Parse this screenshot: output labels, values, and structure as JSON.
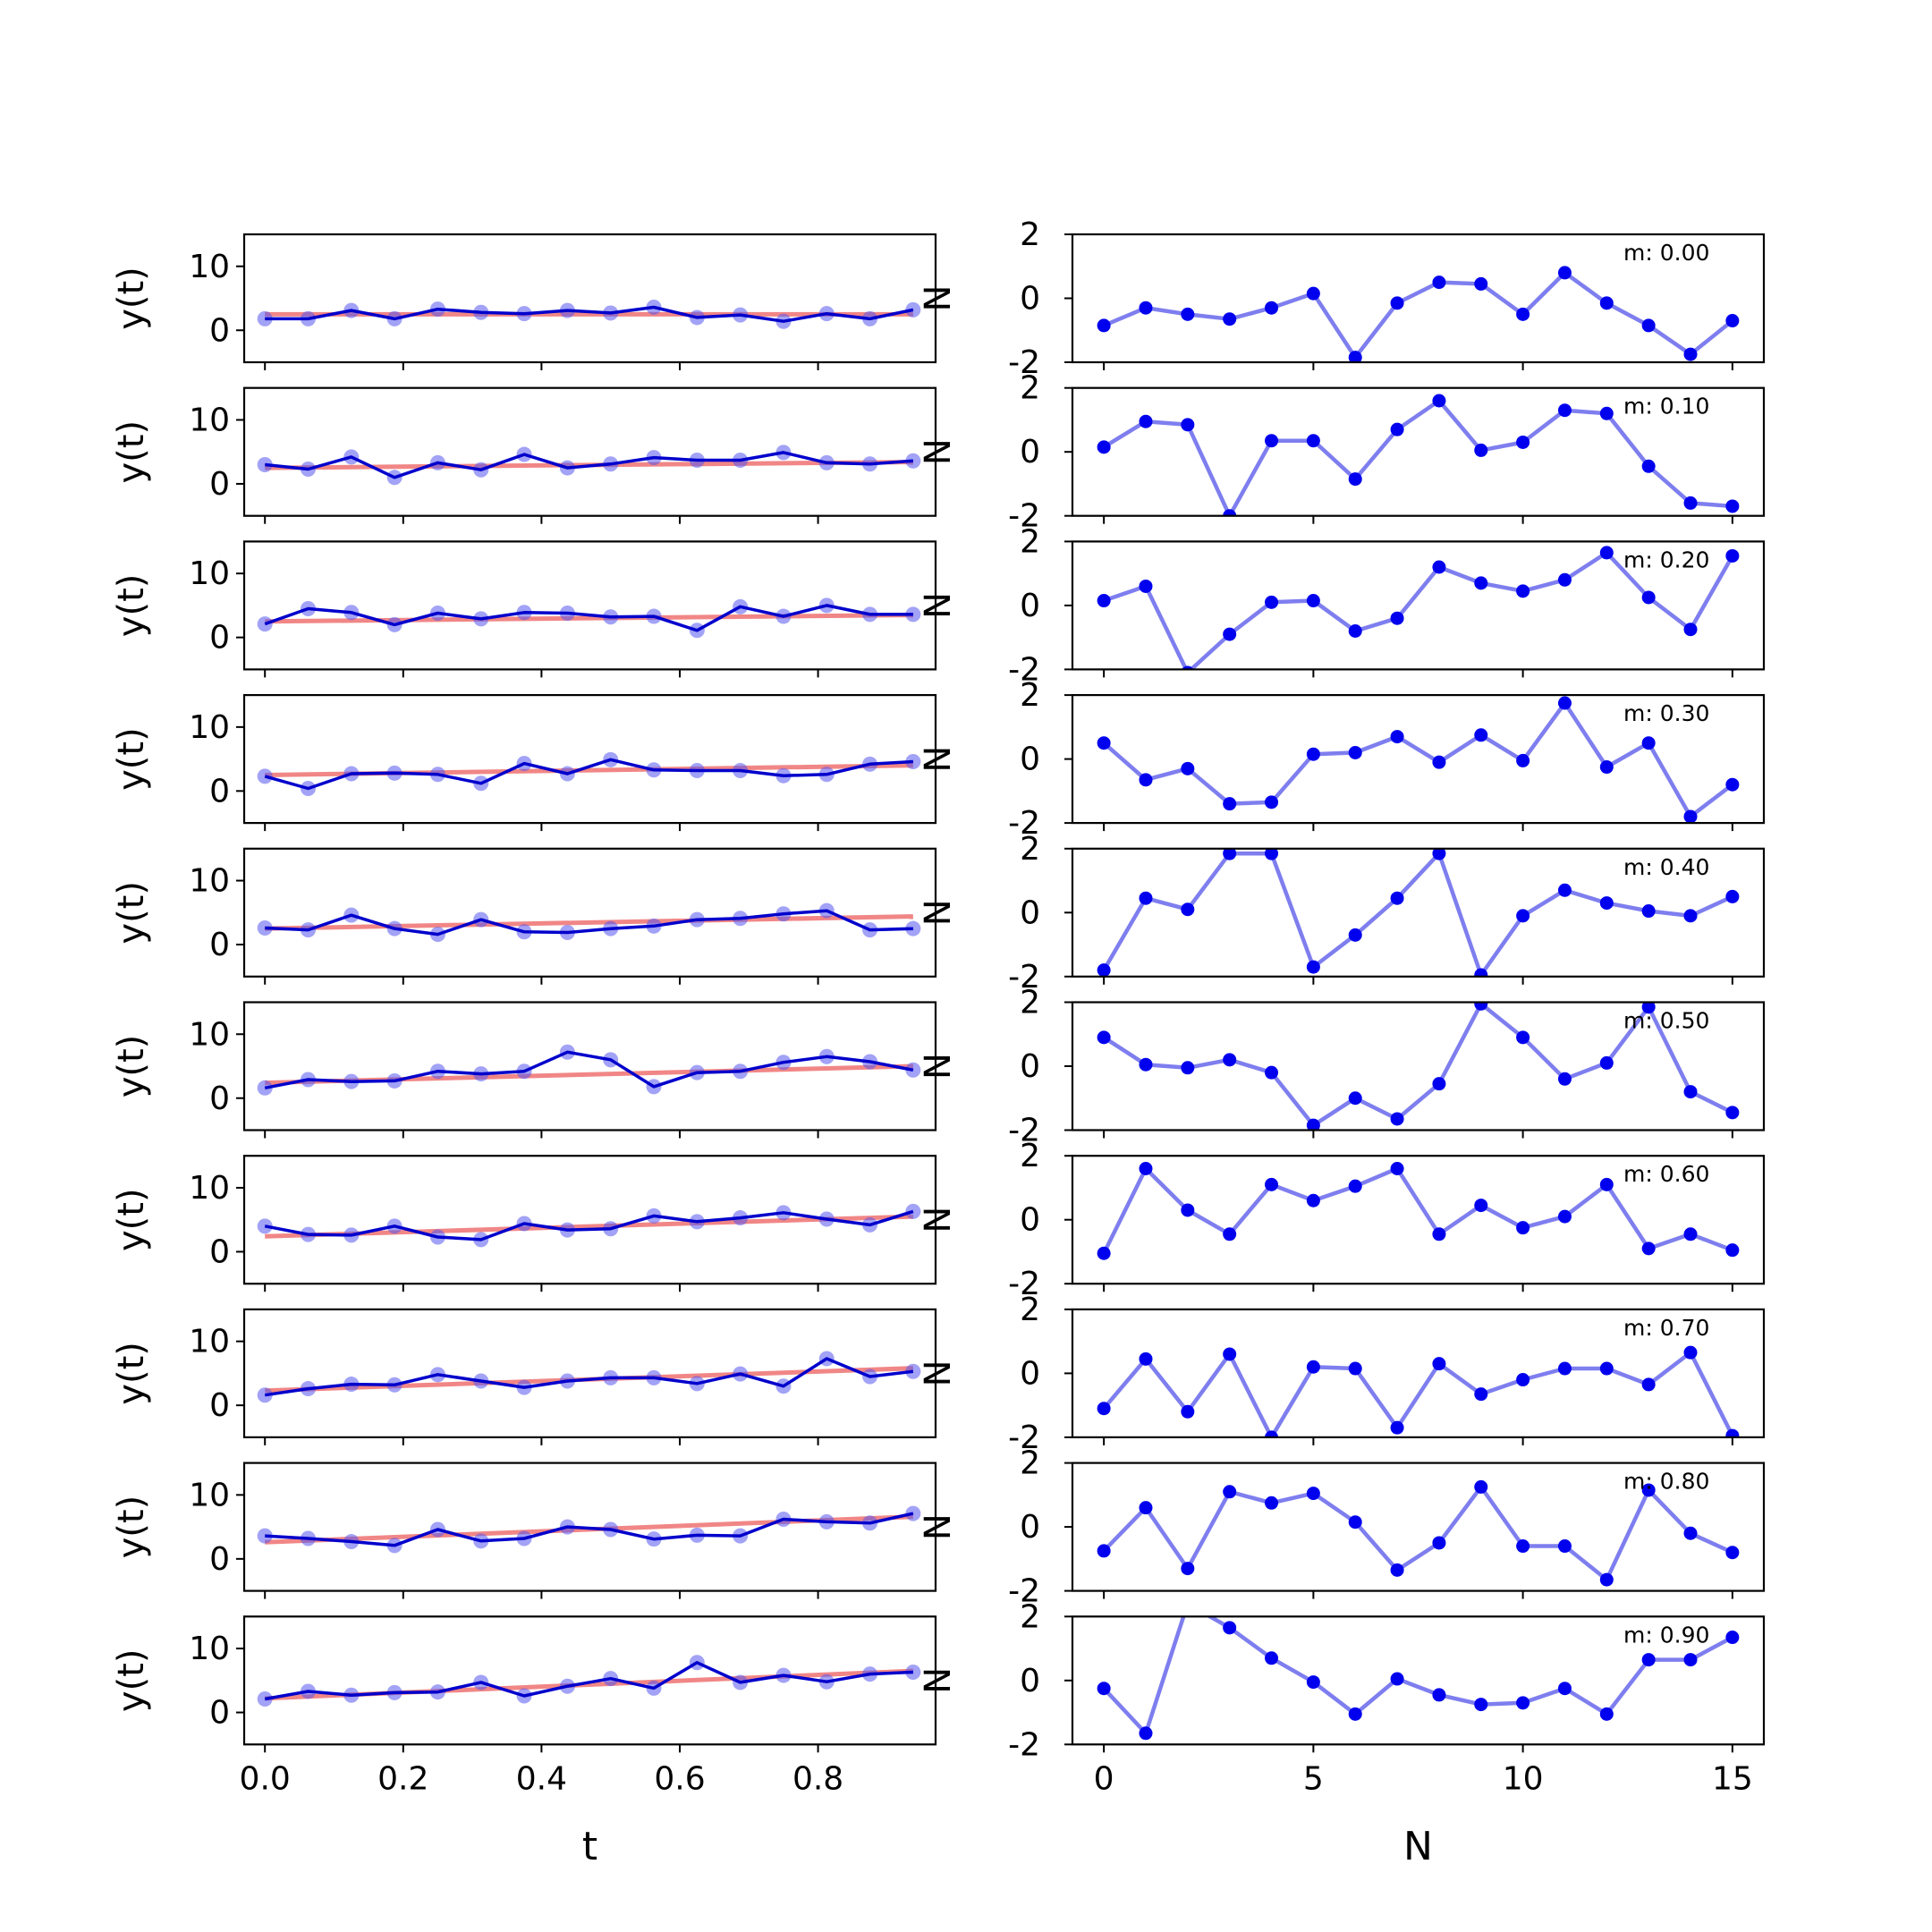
{
  "chart_data": {
    "type": "line",
    "layout": "10 rows x 2 columns of subplots",
    "left_column": {
      "ylabel": "y(t)",
      "xlabel": "t",
      "ylim": [
        -5,
        15
      ],
      "yticks": [
        0,
        10
      ],
      "xlim": [
        -0.03,
        0.97
      ],
      "xticks": [
        0.0,
        0.2,
        0.4,
        0.6,
        0.8
      ],
      "xtick_labels": [
        "0.0",
        "0.2",
        "0.4",
        "0.6",
        "0.8"
      ],
      "t": [
        0.0,
        0.0625,
        0.125,
        0.1875,
        0.25,
        0.3125,
        0.375,
        0.4375,
        0.5,
        0.5625,
        0.625,
        0.6875,
        0.75,
        0.8125,
        0.875,
        0.9375
      ],
      "series_colors": {
        "noisy": "#0000cc",
        "markers": "#5555ee",
        "trend": "#f08080"
      }
    },
    "right_column": {
      "ylabel": "N",
      "xlabel": "N",
      "ylim": [
        -2,
        2
      ],
      "yticks": [
        -2,
        0,
        2
      ],
      "xlim": [
        -0.75,
        15.75
      ],
      "xticks": [
        0,
        5,
        10,
        15
      ],
      "xtick_labels": [
        "0",
        "5",
        "10",
        "15"
      ],
      "line_color": "#7777ee",
      "marker_color": "#0000ee"
    },
    "rows": [
      {
        "m_label": "m: 0.00",
        "trend": [
          2.5,
          2.5
        ],
        "y": [
          1.8,
          1.8,
          3.1,
          1.8,
          3.3,
          2.8,
          2.6,
          3.1,
          2.7,
          3.6,
          2.0,
          2.4,
          1.4,
          2.6,
          1.8,
          3.2
        ],
        "noise": [
          -0.85,
          -0.3,
          -0.5,
          -0.65,
          -0.3,
          0.15,
          -1.85,
          -0.15,
          0.5,
          0.45,
          -0.5,
          0.8,
          -0.15,
          -0.85,
          -1.75,
          -0.7
        ]
      },
      {
        "m_label": "m: 0.10",
        "trend": [
          2.5,
          3.4
        ],
        "y": [
          3.0,
          2.3,
          4.2,
          1.0,
          3.3,
          2.2,
          4.6,
          2.5,
          3.1,
          4.1,
          3.7,
          3.7,
          4.9,
          3.3,
          3.1,
          3.6
        ],
        "noise": [
          0.15,
          0.95,
          0.85,
          -2.0,
          0.35,
          0.35,
          -0.85,
          0.7,
          1.6,
          0.05,
          0.3,
          1.3,
          1.2,
          -0.45,
          -1.6,
          -1.7
        ]
      },
      {
        "m_label": "m: 0.20",
        "trend": [
          2.5,
          3.5
        ],
        "y": [
          2.1,
          4.5,
          3.9,
          2.0,
          3.8,
          2.9,
          3.9,
          3.8,
          3.2,
          3.3,
          1.1,
          4.8,
          3.3,
          5.0,
          3.6,
          3.6
        ],
        "noise": [
          0.15,
          0.6,
          -2.1,
          -0.9,
          0.1,
          0.15,
          -0.8,
          -0.4,
          1.2,
          0.7,
          0.45,
          0.8,
          1.65,
          0.25,
          -0.75,
          1.55
        ]
      },
      {
        "m_label": "m: 0.30",
        "trend": [
          2.5,
          4.0
        ],
        "y": [
          2.3,
          0.4,
          2.7,
          2.8,
          2.6,
          1.2,
          4.3,
          2.7,
          4.9,
          3.3,
          3.2,
          3.2,
          2.4,
          2.6,
          4.2,
          4.6
        ],
        "noise": [
          0.5,
          -0.65,
          -0.3,
          -1.4,
          -1.35,
          0.15,
          0.2,
          0.7,
          -0.1,
          0.75,
          -0.05,
          1.75,
          -0.25,
          0.5,
          -1.8,
          -0.8
        ]
      },
      {
        "m_label": "m: 0.40",
        "trend": [
          2.5,
          4.4
        ],
        "y": [
          2.6,
          2.3,
          4.6,
          2.5,
          1.6,
          3.9,
          2.0,
          1.9,
          2.5,
          2.9,
          3.9,
          4.1,
          4.8,
          5.3,
          2.3,
          2.5
        ],
        "noise": [
          -1.8,
          0.45,
          0.1,
          1.85,
          1.85,
          -1.7,
          -0.7,
          0.45,
          1.85,
          -1.95,
          -0.1,
          0.7,
          0.3,
          0.05,
          -0.1,
          0.5
        ]
      },
      {
        "m_label": "m: 0.50",
        "trend": [
          2.4,
          5.0
        ],
        "y": [
          1.6,
          2.9,
          2.6,
          2.7,
          4.2,
          3.8,
          4.2,
          7.2,
          6.0,
          1.8,
          4.0,
          4.2,
          5.6,
          6.5,
          5.7,
          4.4
        ],
        "noise": [
          0.9,
          0.05,
          -0.05,
          0.2,
          -0.2,
          -1.85,
          -1.0,
          -1.65,
          -0.55,
          1.95,
          0.9,
          -0.4,
          0.1,
          1.85,
          -0.8,
          -1.45
        ]
      },
      {
        "m_label": "m: 0.60",
        "trend": [
          2.4,
          5.5
        ],
        "y": [
          4.0,
          2.7,
          2.6,
          4.0,
          2.3,
          1.9,
          4.4,
          3.4,
          3.6,
          5.6,
          4.7,
          5.3,
          6.1,
          5.1,
          4.2,
          6.3
        ],
        "noise": [
          -1.05,
          1.6,
          0.3,
          -0.45,
          1.1,
          0.6,
          1.05,
          1.6,
          -0.45,
          0.45,
          -0.25,
          0.1,
          1.1,
          -0.9,
          -0.45,
          -0.95
        ]
      },
      {
        "m_label": "m: 0.70",
        "trend": [
          2.3,
          5.8
        ],
        "y": [
          1.6,
          2.6,
          3.3,
          3.2,
          4.8,
          3.8,
          2.8,
          3.8,
          4.3,
          4.3,
          3.4,
          4.9,
          3.0,
          7.3,
          4.5,
          5.3
        ],
        "noise": [
          -1.1,
          0.45,
          -1.2,
          0.6,
          -2.0,
          0.2,
          0.15,
          -1.7,
          0.3,
          -0.65,
          -0.2,
          0.15,
          0.15,
          -0.35,
          0.65,
          -1.95
        ]
      },
      {
        "m_label": "m: 0.80",
        "trend": [
          2.6,
          6.6
        ],
        "y": [
          3.6,
          3.2,
          2.7,
          2.1,
          4.6,
          2.8,
          3.2,
          5.0,
          4.6,
          3.1,
          3.7,
          3.6,
          6.2,
          5.8,
          5.6,
          7.1
        ],
        "noise": [
          -0.75,
          0.6,
          -1.3,
          1.1,
          0.75,
          1.05,
          0.15,
          -1.35,
          -0.5,
          1.25,
          -0.6,
          -0.6,
          -1.65,
          1.15,
          -0.2,
          -0.8
        ]
      },
      {
        "m_label": "m: 0.90",
        "trend": [
          2.2,
          6.5
        ],
        "y": [
          2.1,
          3.3,
          2.7,
          3.1,
          3.2,
          4.7,
          2.6,
          4.1,
          5.3,
          3.8,
          7.8,
          4.7,
          5.8,
          4.8,
          6.0,
          6.3
        ],
        "noise": [
          -0.25,
          -1.65,
          2.4,
          1.65,
          0.7,
          -0.05,
          -1.05,
          0.05,
          -0.45,
          -0.75,
          -0.7,
          -0.25,
          -1.05,
          0.65,
          0.65,
          1.35
        ]
      }
    ]
  }
}
